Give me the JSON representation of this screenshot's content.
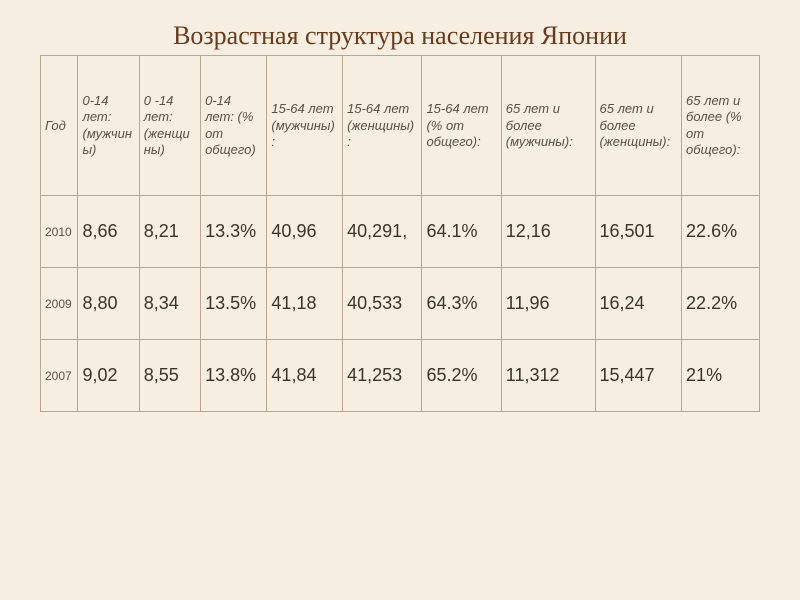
{
  "title": "Возрастная структура населения Японии",
  "colors": {
    "background": "#f5eee1",
    "title": "#6b3a1a",
    "border": "#b8a98c",
    "header_text": "#5a5040",
    "cell_text": "#3a3528"
  },
  "typography": {
    "title_fontsize": 26,
    "header_fontsize": 13,
    "cell_fontsize": 18,
    "year_fontsize": 12
  },
  "table": {
    "columns": [
      "Год",
      "0-14 лет: (мужчины)",
      "0 -14 лет: (женщины)",
      "0-14 лет: (% от общего)",
      "15-64 лет (мужчины):",
      "15-64 лет (женщины):",
      "15-64 лет (% от общего):",
      "65 лет и более (мужчины):",
      "65 лет и более (женщины):",
      "65 лет и более (% от общего):"
    ],
    "rows": [
      [
        "2010",
        "8,66",
        "8,21",
        "13.3%",
        "40,96",
        "40,291,",
        "64.1%",
        "12,16",
        "16,501",
        "22.6%"
      ],
      [
        "2009",
        "8,80",
        "8,34",
        "13.5%",
        "41,18",
        "40,533",
        "64.3%",
        "11,96",
        "16,24",
        "22.2%"
      ],
      [
        "2007",
        "9,02",
        "8,55",
        "13.8%",
        "41,84",
        "41,253",
        "65.2%",
        "11,312",
        "15,447",
        "21%"
      ]
    ],
    "col_widths_pct": [
      5.2,
      8.5,
      8.5,
      9.2,
      10.5,
      11,
      11,
      13,
      12,
      10.8
    ]
  }
}
